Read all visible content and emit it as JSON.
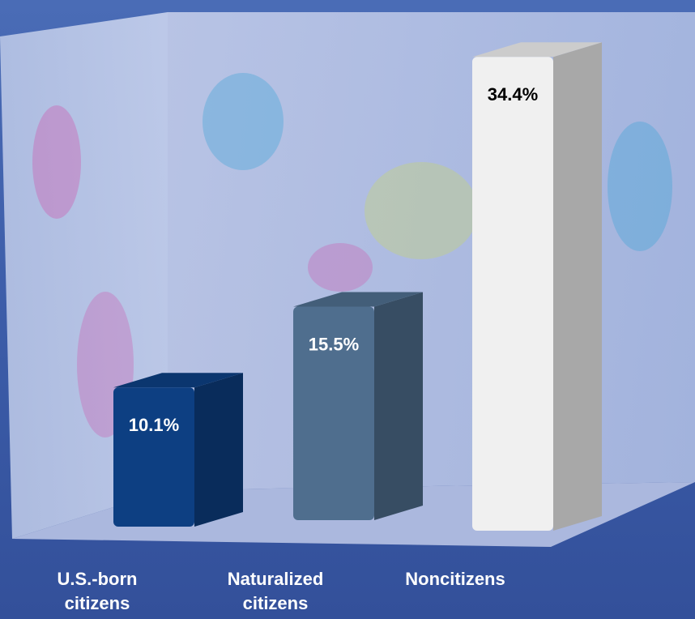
{
  "chart_data": {
    "type": "bar3d",
    "categories": [
      "U.S.-born citizens",
      "Naturalized citizens",
      "Noncitizens"
    ],
    "values": [
      10.1,
      15.5,
      34.4
    ],
    "value_labels": [
      "10.1%",
      "15.5%",
      "34.4%"
    ],
    "colors": [
      "#0d3f82",
      "#4f6e8e",
      "#f0f0f0"
    ]
  }
}
